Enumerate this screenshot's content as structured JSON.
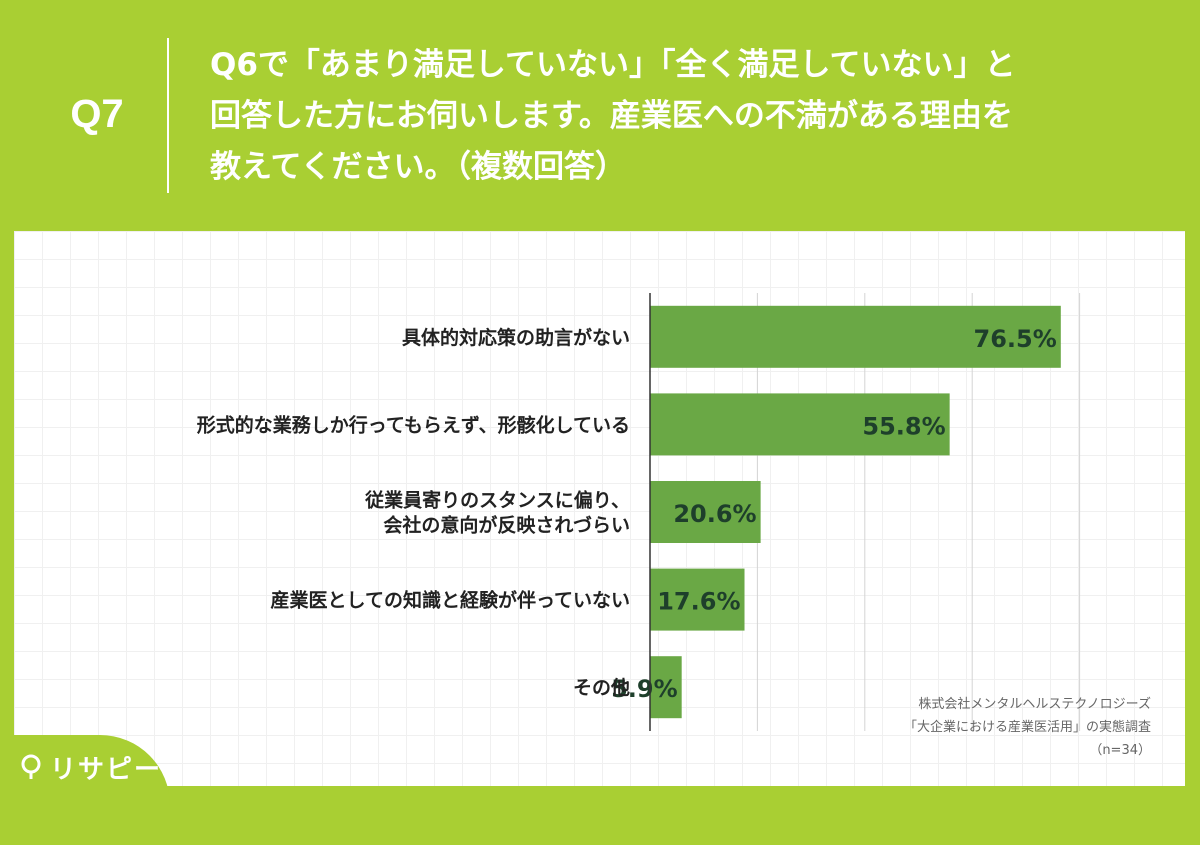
{
  "header": {
    "question_number": "Q7",
    "question_lines": [
      "Q6で「あまり満足していない」「全く満足していない」と",
      "回答した方にお伺いします。産業医への不満がある理由を",
      "教えてください。（複数回答）"
    ]
  },
  "chart_data": {
    "type": "bar",
    "orientation": "horizontal",
    "categories": [
      [
        "具体的対応策の助言がない"
      ],
      [
        "形式的な業務しか行ってもらえず、形骸化している"
      ],
      [
        "従業員寄りのスタンスに偏り、",
        "会社の意向が反映されづらい"
      ],
      [
        "産業医としての知識と経験が伴っていない"
      ],
      [
        "その他"
      ]
    ],
    "values": [
      76.5,
      55.8,
      20.6,
      17.6,
      5.9
    ],
    "value_labels": [
      "76.5%",
      "55.8%",
      "20.6%",
      "17.6%",
      "5.9%"
    ],
    "xlim": [
      0,
      100
    ],
    "grid": true,
    "bar_color": "#6aa845",
    "label_color": "#1e3f2b"
  },
  "credit": {
    "line1": "株式会社メンタルヘルステクノロジーズ",
    "line2": "「大企業における産業医活用」の実態調査",
    "line3": "（n=34）"
  },
  "logo": {
    "text": "リサピー",
    "icon": "pin-icon"
  },
  "colors": {
    "background": "#a9cf33",
    "panel": "#ffffff"
  }
}
